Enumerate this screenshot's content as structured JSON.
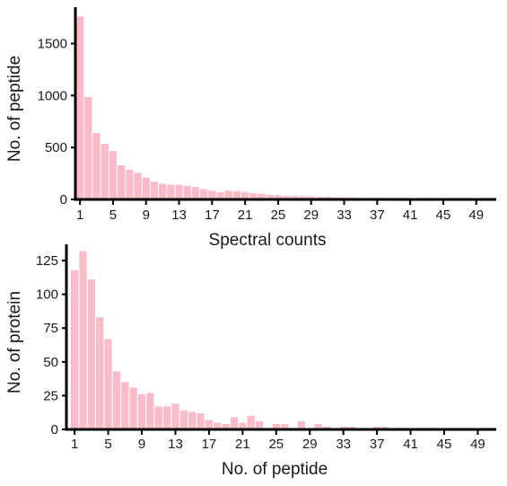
{
  "colors": {
    "bar": "#f9bcc8",
    "axis": "#000000",
    "text": "#1a1a1a"
  },
  "chart_data": [
    {
      "type": "bar",
      "title": "",
      "xlabel": "Spectral counts",
      "ylabel": "No. of peptide",
      "grid": false,
      "legend": "none",
      "xlim": [
        1,
        50
      ],
      "ylim": [
        0,
        1850
      ],
      "x_ticks": [
        1,
        5,
        9,
        13,
        17,
        21,
        25,
        29,
        33,
        37,
        41,
        45,
        49
      ],
      "y_ticks": [
        0,
        500,
        1000,
        1500
      ],
      "x": [
        1,
        2,
        3,
        4,
        5,
        6,
        7,
        8,
        9,
        10,
        11,
        12,
        13,
        14,
        15,
        16,
        17,
        18,
        19,
        20,
        21,
        22,
        23,
        24,
        25,
        26,
        27,
        28,
        29,
        30,
        31,
        32,
        33,
        34,
        35,
        36,
        37,
        38,
        39,
        40,
        41,
        42,
        43,
        44,
        45,
        46,
        47,
        48,
        49,
        50
      ],
      "values": [
        1760,
        985,
        640,
        535,
        465,
        330,
        285,
        255,
        210,
        170,
        150,
        140,
        140,
        130,
        120,
        100,
        85,
        70,
        85,
        80,
        70,
        60,
        55,
        45,
        40,
        35,
        35,
        30,
        30,
        25,
        25,
        20,
        20,
        20,
        15,
        15,
        15,
        15,
        10,
        10,
        8,
        6,
        5,
        4,
        3,
        3,
        2,
        2,
        2,
        1
      ]
    },
    {
      "type": "bar",
      "title": "",
      "xlabel": "No. of peptide",
      "ylabel": "No. of protein",
      "grid": false,
      "legend": "none",
      "xlim": [
        1,
        50
      ],
      "ylim": [
        0,
        137
      ],
      "x_ticks": [
        1,
        5,
        9,
        13,
        17,
        21,
        25,
        29,
        33,
        37,
        41,
        45,
        49
      ],
      "y_ticks": [
        0,
        25,
        50,
        75,
        100,
        125
      ],
      "x": [
        1,
        2,
        3,
        4,
        5,
        6,
        7,
        8,
        9,
        10,
        11,
        12,
        13,
        14,
        15,
        16,
        17,
        18,
        19,
        20,
        21,
        22,
        23,
        24,
        25,
        26,
        27,
        28,
        29,
        30,
        31,
        32,
        33,
        34,
        35,
        36,
        37,
        38,
        39,
        40,
        41,
        42,
        43,
        44,
        45,
        46,
        47,
        48,
        49,
        50
      ],
      "values": [
        118,
        132,
        111,
        83,
        67,
        43,
        35,
        31,
        26,
        27,
        17,
        17,
        19,
        14,
        13,
        12,
        7,
        5,
        4,
        9,
        5,
        10,
        6,
        0,
        4,
        4,
        1,
        6,
        1,
        4,
        2,
        1,
        2,
        2,
        1,
        1,
        2,
        2,
        1,
        1,
        1,
        1,
        0,
        0,
        0,
        0,
        1,
        0,
        0,
        0
      ]
    }
  ]
}
